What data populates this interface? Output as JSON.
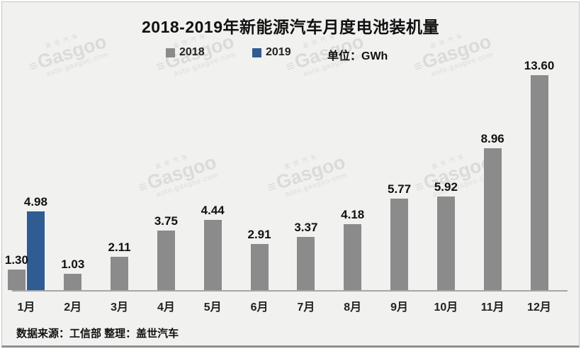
{
  "chart_data": {
    "type": "bar",
    "title": "2018-2019年新能源汽车月度电池装机量",
    "unit_label": "单位：GWh",
    "categories": [
      "1月",
      "2月",
      "3月",
      "4月",
      "5月",
      "6月",
      "7月",
      "8月",
      "9月",
      "10月",
      "11月",
      "12月"
    ],
    "series": [
      {
        "name": "2018",
        "color": "#8b8b8b",
        "values": [
          1.3,
          1.03,
          2.11,
          3.75,
          4.44,
          2.91,
          3.37,
          4.18,
          5.77,
          5.92,
          8.96,
          13.6
        ]
      },
      {
        "name": "2019",
        "color": "#2f5d93",
        "values": [
          4.98,
          null,
          null,
          null,
          null,
          null,
          null,
          null,
          null,
          null,
          null,
          null
        ]
      }
    ],
    "value_label_decimals": 2,
    "ylim": [
      0,
      14
    ],
    "grid": false,
    "legend_position": "top"
  },
  "footer": {
    "text": "数据来源：工信部  整理：盖世汽车"
  },
  "watermark": {
    "cn": "盖世汽车",
    "logo_glyph": "≡",
    "brand": "Gasgoo",
    "domain": "auto.gasgoo.com"
  },
  "colors": {
    "background": "#f1f1f0",
    "bar_2018": "#8b8b8b",
    "bar_2019": "#2f5d93",
    "axis_line": "#a6a6a6"
  }
}
